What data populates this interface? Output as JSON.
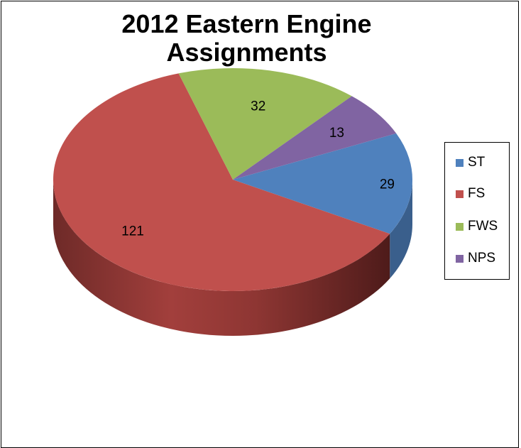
{
  "chart_data": {
    "type": "pie",
    "title": "2012 Eastern Engine Assignments",
    "title_lines": [
      "2012 Eastern Engine",
      "Assignments"
    ],
    "three_d": true,
    "slices": [
      {
        "label": "ST",
        "value": 29,
        "color": "#4F81BD",
        "side_color": "#3A5F8C"
      },
      {
        "label": "FS",
        "value": 121,
        "color": "#C0504D",
        "side_color": "#8B3331"
      },
      {
        "label": "FWS",
        "value": 32,
        "color": "#9BBB59",
        "side_color": "#6F8A3C"
      },
      {
        "label": "NPS",
        "value": 13,
        "color": "#8064A2",
        "side_color": "#5C4876"
      }
    ],
    "legend": {
      "position": "right",
      "entries": [
        "ST",
        "FS",
        "FWS",
        "NPS"
      ]
    }
  }
}
